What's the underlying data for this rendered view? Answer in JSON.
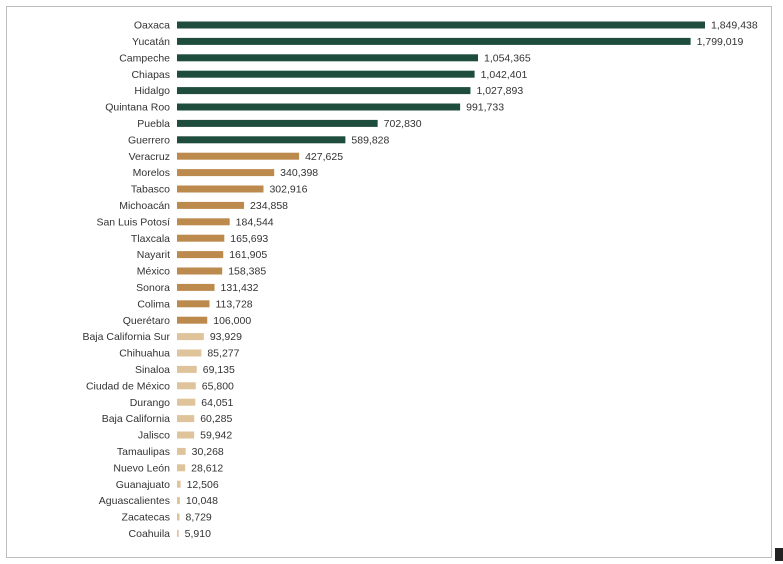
{
  "chart_data": {
    "type": "bar",
    "orientation": "horizontal",
    "categories": [
      "Oaxaca",
      "Yucatán",
      "Campeche",
      "Chiapas",
      "Hidalgo",
      "Quintana Roo",
      "Puebla",
      "Guerrero",
      "Veracruz",
      "Morelos",
      "Tabasco",
      "Michoacán",
      "San Luis Potosí",
      "Tlaxcala",
      "Nayarit",
      "México",
      "Sonora",
      "Colima",
      "Querétaro",
      "Baja California Sur",
      "Chihuahua",
      "Sinaloa",
      "Ciudad de México",
      "Durango",
      "Baja California",
      "Jalisco",
      "Tamaulipas",
      "Nuevo León",
      "Guanajuato",
      "Aguascalientes",
      "Zacatecas",
      "Coahuila"
    ],
    "values": [
      1849438,
      1799019,
      1054365,
      1042401,
      1027893,
      991733,
      702830,
      589828,
      427625,
      340398,
      302916,
      234858,
      184544,
      165693,
      161905,
      158385,
      131432,
      113728,
      106000,
      93929,
      85277,
      69135,
      65800,
      64051,
      60285,
      59942,
      30268,
      28612,
      12506,
      10048,
      8729,
      5910
    ],
    "value_labels": [
      "1,849,438",
      "1,799,019",
      "1,054,365",
      "1,042,401",
      "1,027,893",
      "991,733",
      "702,830",
      "589,828",
      "427,625",
      "340,398",
      "302,916",
      "234,858",
      "184,544",
      "165,693",
      "161,905",
      "158,385",
      "131,432",
      "113,728",
      "106,000",
      "93,929",
      "85,277",
      "69,135",
      "65,800",
      "64,051",
      "60,285",
      "59,942",
      "30,268",
      "28,612",
      "12,506",
      "10,048",
      "8,729",
      "5,910"
    ],
    "title": "",
    "xlabel": "",
    "ylabel": "",
    "xlim": [
      0,
      1849438
    ],
    "grid": false,
    "legend": "none",
    "colors": {
      "high": "#1e4d3d",
      "medium": "#bd8a4e",
      "low": "#dfc39a"
    },
    "color_tiers": [
      "high",
      "high",
      "high",
      "high",
      "high",
      "high",
      "high",
      "high",
      "medium",
      "medium",
      "medium",
      "medium",
      "medium",
      "medium",
      "medium",
      "medium",
      "medium",
      "medium",
      "medium",
      "low",
      "low",
      "low",
      "low",
      "low",
      "low",
      "low",
      "low",
      "low",
      "low",
      "low",
      "low",
      "low"
    ]
  }
}
